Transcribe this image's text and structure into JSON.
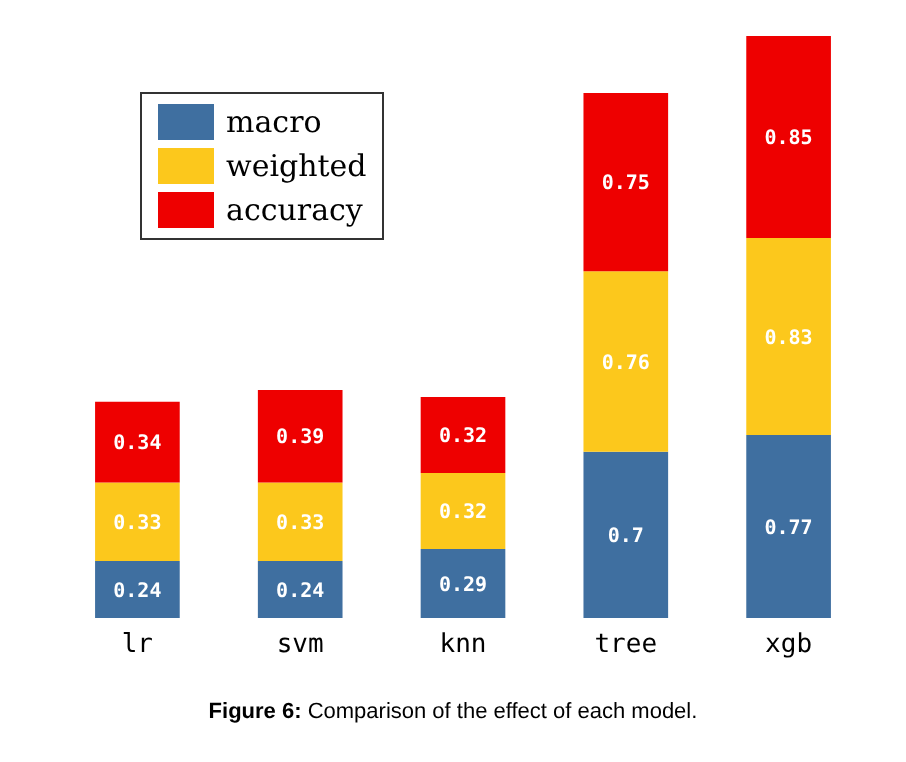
{
  "chart_data": {
    "type": "bar",
    "stacked": true,
    "data_labels": true,
    "legend": "top left",
    "title": "Figure 6: Comparison of the effect of each model.",
    "categories": [
      "lr",
      "svm",
      "knn",
      "tree",
      "xgb"
    ],
    "series": [
      {
        "name": "macro",
        "color": "#3f6fa0",
        "values": [
          0.24,
          0.24,
          0.29,
          0.7,
          0.77
        ]
      },
      {
        "name": "weighted",
        "color": "#fcc81c",
        "values": [
          0.33,
          0.33,
          0.32,
          0.76,
          0.83
        ]
      },
      {
        "name": "accuracy",
        "color": "#ee0000",
        "values": [
          0.34,
          0.39,
          0.32,
          0.75,
          0.85
        ]
      }
    ]
  }
}
